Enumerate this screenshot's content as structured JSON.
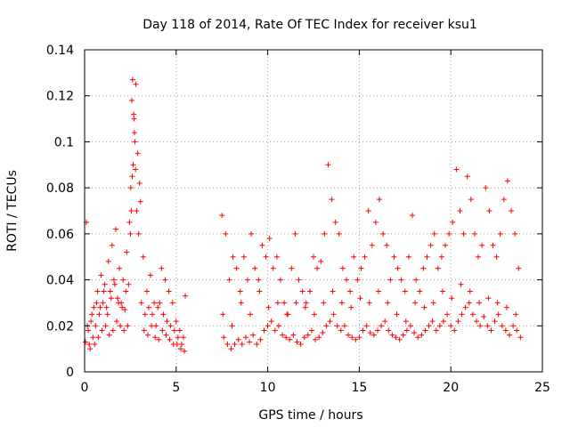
{
  "chart_data": {
    "type": "scatter",
    "title": "Day 118 of 2014, Rate Of TEC Index for receiver ksu1",
    "xlabel": "GPS time / hours",
    "ylabel": "ROTI / TECUs",
    "xlim": [
      0,
      25
    ],
    "ylim": [
      0,
      0.14
    ],
    "xticks": [
      0,
      5,
      10,
      15,
      20,
      25
    ],
    "xtick_labels": [
      "0",
      "5",
      "10",
      "15",
      "20",
      "25"
    ],
    "yticks": [
      0,
      0.02,
      0.04,
      0.06,
      0.08,
      0.1,
      0.12,
      0.14
    ],
    "ytick_labels": [
      "0",
      "0.02",
      "0.04",
      "0.06",
      "0.08",
      "0.1",
      "0.12",
      "0.14"
    ],
    "grid": true,
    "marker": "+",
    "color": "#ff0000",
    "data_gap_hours": [
      5.6,
      7.4
    ],
    "series": [
      {
        "name": "ROTI",
        "x": [
          0.05,
          0.2,
          0.35,
          0.5,
          0.7,
          0.9,
          1.1,
          1.3,
          1.5,
          1.7,
          1.9,
          2.1,
          2.3,
          2.5,
          2.6,
          2.7,
          2.8,
          2.9,
          3.0,
          3.2,
          3.4,
          3.6,
          3.8,
          4.0,
          4.2,
          4.4,
          4.6,
          4.8,
          5.0,
          5.2,
          5.4,
          5.5,
          0.25,
          0.45,
          0.6,
          0.8,
          1.0,
          1.2,
          1.4,
          1.6,
          1.8,
          2.0,
          2.2,
          2.4,
          2.55,
          2.65,
          2.75,
          2.85,
          2.95,
          3.1,
          3.3,
          3.5,
          3.7,
          3.9,
          4.1,
          4.3,
          4.5,
          4.7,
          4.9,
          5.1,
          5.3,
          0.1,
          0.3,
          0.55,
          0.75,
          0.95,
          1.15,
          1.35,
          1.55,
          1.75,
          1.95,
          2.15,
          2.35,
          2.45,
          2.52,
          2.58,
          2.62,
          2.68,
          2.72,
          2.78,
          3.05,
          3.25,
          3.45,
          3.65,
          3.85,
          4.05,
          4.25,
          4.45,
          4.65,
          4.85,
          5.05,
          5.25,
          5.45,
          7.5,
          7.7,
          7.9,
          8.1,
          8.3,
          8.5,
          8.7,
          8.9,
          9.1,
          9.3,
          9.5,
          9.7,
          9.9,
          10.1,
          10.3,
          10.5,
          10.7,
          10.9,
          11.1,
          11.3,
          11.5,
          11.7,
          11.9,
          12.1,
          12.3,
          12.5,
          12.7,
          12.9,
          13.1,
          13.3,
          13.5,
          13.7,
          13.9,
          14.1,
          14.3,
          14.5,
          14.7,
          14.9,
          7.6,
          7.8,
          8.0,
          8.2,
          8.4,
          8.6,
          8.8,
          9.0,
          9.2,
          9.4,
          9.6,
          9.8,
          10.0,
          10.2,
          10.4,
          10.6,
          10.8,
          11.0,
          11.2,
          11.4,
          11.6,
          11.8,
          12.0,
          12.2,
          12.4,
          12.6,
          12.8,
          13.0,
          13.2,
          13.4,
          13.6,
          13.8,
          14.0,
          14.2,
          14.4,
          14.6,
          14.8,
          15.1,
          15.3,
          15.5,
          15.7,
          15.9,
          16.1,
          16.3,
          16.5,
          16.7,
          16.9,
          17.1,
          17.3,
          17.5,
          17.7,
          17.9,
          18.1,
          18.3,
          18.5,
          18.7,
          18.9,
          19.1,
          19.3,
          19.5,
          19.7,
          19.9,
          20.1,
          20.3,
          20.5,
          20.7,
          20.9,
          21.1,
          21.3,
          21.5,
          21.7,
          21.9,
          22.1,
          22.3,
          22.5,
          22.7,
          22.9,
          23.1,
          23.3,
          23.5,
          23.7,
          15.0,
          15.2,
          15.4,
          15.6,
          15.8,
          16.0,
          16.2,
          16.4,
          16.6,
          16.8,
          17.0,
          17.2,
          17.4,
          17.6,
          17.8,
          18.0,
          18.2,
          18.4,
          18.6,
          18.8,
          19.0,
          19.2,
          19.4,
          19.6,
          19.8,
          20.0,
          20.2,
          20.4,
          20.6,
          20.8,
          21.0,
          21.2,
          21.4,
          21.6,
          21.8,
          22.0,
          22.2,
          22.4,
          22.6,
          22.8,
          23.0,
          23.2,
          23.4,
          23.6,
          23.8,
          0.15,
          0.4,
          0.65,
          0.85,
          1.05,
          1.25,
          1.45,
          1.65,
          1.85,
          2.05,
          2.25,
          7.55,
          8.05,
          8.55,
          9.05,
          9.55,
          10.05,
          10.55,
          11.05,
          11.55,
          12.05,
          12.55,
          13.05,
          13.55,
          14.05,
          14.55,
          15.05,
          15.55,
          16.05,
          16.55,
          17.05,
          17.55,
          18.05,
          18.55,
          19.05,
          19.55,
          20.05,
          20.55,
          21.05,
          21.55,
          22.05,
          22.55,
          23.05,
          23.55
        ],
        "y": [
          0.013,
          0.018,
          0.022,
          0.028,
          0.035,
          0.042,
          0.038,
          0.048,
          0.055,
          0.062,
          0.045,
          0.04,
          0.052,
          0.06,
          0.085,
          0.11,
          0.125,
          0.095,
          0.082,
          0.05,
          0.035,
          0.042,
          0.03,
          0.028,
          0.045,
          0.04,
          0.035,
          0.03,
          0.022,
          0.018,
          0.015,
          0.033,
          0.012,
          0.015,
          0.02,
          0.025,
          0.03,
          0.028,
          0.035,
          0.04,
          0.032,
          0.03,
          0.027,
          0.038,
          0.07,
          0.09,
          0.1,
          0.07,
          0.06,
          0.03,
          0.025,
          0.028,
          0.025,
          0.02,
          0.03,
          0.025,
          0.022,
          0.02,
          0.018,
          0.015,
          0.012,
          0.065,
          0.01,
          0.012,
          0.015,
          0.018,
          0.02,
          0.016,
          0.018,
          0.022,
          0.02,
          0.018,
          0.02,
          0.065,
          0.08,
          0.118,
          0.127,
          0.112,
          0.104,
          0.088,
          0.074,
          0.018,
          0.016,
          0.02,
          0.015,
          0.014,
          0.018,
          0.016,
          0.014,
          0.012,
          0.012,
          0.01,
          0.009,
          0.068,
          0.06,
          0.04,
          0.05,
          0.045,
          0.035,
          0.05,
          0.04,
          0.06,
          0.045,
          0.04,
          0.055,
          0.05,
          0.058,
          0.045,
          0.05,
          0.04,
          0.03,
          0.025,
          0.045,
          0.06,
          0.04,
          0.035,
          0.03,
          0.035,
          0.05,
          0.045,
          0.048,
          0.06,
          0.09,
          0.075,
          0.065,
          0.06,
          0.045,
          0.04,
          0.035,
          0.05,
          0.04,
          0.015,
          0.012,
          0.01,
          0.012,
          0.014,
          0.012,
          0.015,
          0.013,
          0.016,
          0.012,
          0.014,
          0.018,
          0.02,
          0.022,
          0.018,
          0.02,
          0.016,
          0.015,
          0.014,
          0.016,
          0.013,
          0.012,
          0.015,
          0.016,
          0.018,
          0.014,
          0.015,
          0.017,
          0.02,
          0.022,
          0.025,
          0.02,
          0.018,
          0.02,
          0.016,
          0.015,
          0.014,
          0.045,
          0.05,
          0.07,
          0.055,
          0.065,
          0.075,
          0.06,
          0.055,
          0.04,
          0.05,
          0.045,
          0.04,
          0.035,
          0.05,
          0.068,
          0.04,
          0.035,
          0.045,
          0.05,
          0.055,
          0.06,
          0.045,
          0.05,
          0.055,
          0.06,
          0.065,
          0.088,
          0.07,
          0.06,
          0.085,
          0.075,
          0.06,
          0.05,
          0.055,
          0.08,
          0.07,
          0.055,
          0.05,
          0.06,
          0.075,
          0.083,
          0.07,
          0.06,
          0.045,
          0.015,
          0.018,
          0.02,
          0.017,
          0.016,
          0.018,
          0.02,
          0.022,
          0.018,
          0.016,
          0.015,
          0.014,
          0.016,
          0.018,
          0.02,
          0.017,
          0.015,
          0.016,
          0.018,
          0.02,
          0.022,
          0.018,
          0.02,
          0.022,
          0.025,
          0.02,
          0.018,
          0.022,
          0.025,
          0.028,
          0.03,
          0.025,
          0.022,
          0.02,
          0.024,
          0.02,
          0.018,
          0.022,
          0.025,
          0.02,
          0.018,
          0.016,
          0.02,
          0.018,
          0.015,
          0.02,
          0.025,
          0.03,
          0.028,
          0.035,
          0.025,
          0.032,
          0.038,
          0.03,
          0.028,
          0.035,
          0.025,
          0.02,
          0.03,
          0.025,
          0.035,
          0.028,
          0.03,
          0.025,
          0.03,
          0.028,
          0.025,
          0.03,
          0.035,
          0.03,
          0.028,
          0.032,
          0.03,
          0.035,
          0.03,
          0.025,
          0.022,
          0.03,
          0.028,
          0.03,
          0.035,
          0.032,
          0.038,
          0.035,
          0.03,
          0.032,
          0.03,
          0.028,
          0.025
        ]
      }
    ]
  }
}
